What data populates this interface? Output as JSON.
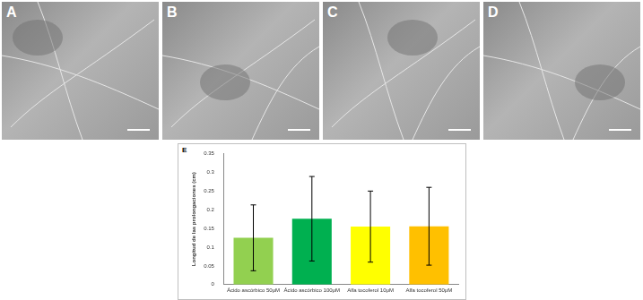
{
  "panels": [
    {
      "label": "A"
    },
    {
      "label": "B"
    },
    {
      "label": "C"
    },
    {
      "label": "D"
    }
  ],
  "chart_panel": {
    "label": "E"
  },
  "chart_data": {
    "type": "bar",
    "y_label": "Longitud de las prolongaciones (cm)",
    "categories": [
      "Ácido ascórbico 50μM",
      "Ácido ascórbico 100μM",
      "Alfa tocoferol 10μM",
      "Alfa tocoferol 50μM"
    ],
    "values": [
      0.125,
      0.176,
      0.155,
      0.156
    ],
    "errors": [
      0.088,
      0.113,
      0.095,
      0.104
    ],
    "colors": [
      "#92d050",
      "#00b050",
      "#ffff00",
      "#ffc000"
    ],
    "ylim": [
      0,
      0.35
    ],
    "yticks": [
      0,
      0.05,
      0.1,
      0.15,
      0.2,
      0.25,
      0.3,
      0.35
    ],
    "grid": false
  }
}
